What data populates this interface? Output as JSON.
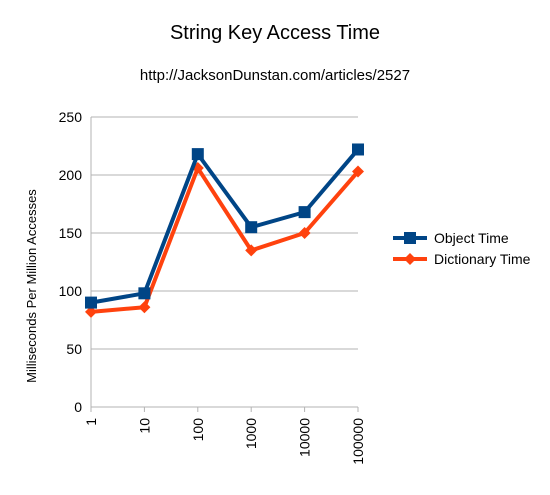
{
  "chart_data": {
    "type": "line",
    "title": "String Key Access Time",
    "subtitle": "http://JacksonDunstan.com/articles/2527",
    "ylabel": "Milliseconds Per Million Accesses",
    "xlabel": "",
    "categories": [
      "1",
      "10",
      "100",
      "1000",
      "10000",
      "100000"
    ],
    "ylim": [
      0,
      250
    ],
    "yticks": [
      0,
      50,
      100,
      150,
      200,
      250
    ],
    "grid": true,
    "legend_position": "right",
    "series": [
      {
        "name": "Object Time",
        "values": [
          90,
          98,
          218,
          155,
          168,
          222
        ],
        "color": "#004586",
        "marker": "square"
      },
      {
        "name": "Dictionary Time",
        "values": [
          82,
          86,
          206,
          135,
          150,
          203
        ],
        "color": "#ff420e",
        "marker": "diamond"
      }
    ]
  }
}
